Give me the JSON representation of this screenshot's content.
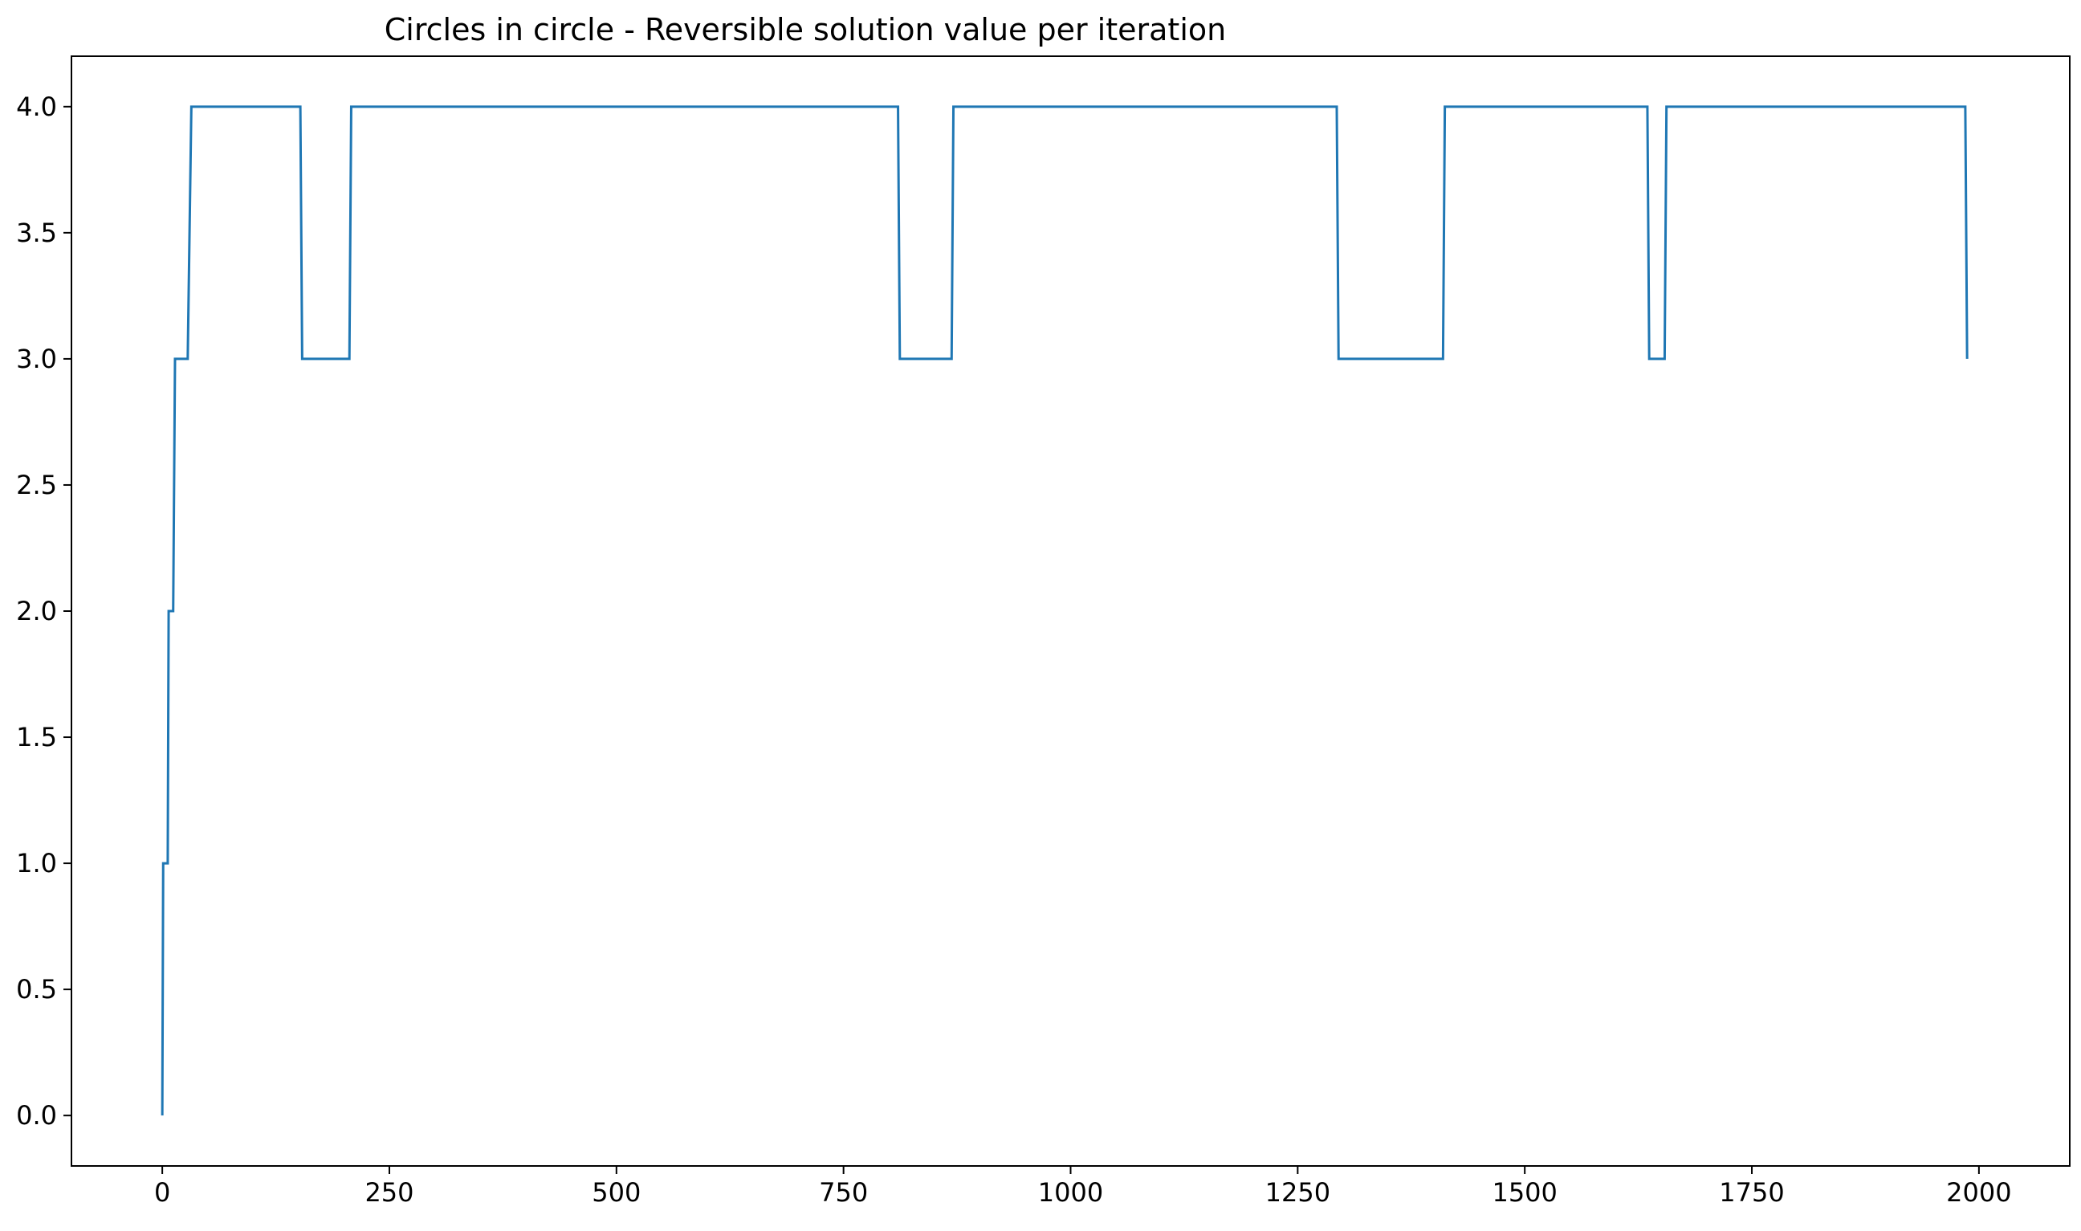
{
  "chart_data": {
    "type": "line",
    "title": "Circles in circle - Reversible solution value per iteration",
    "xlabel": "",
    "ylabel": "",
    "xlim": [
      -100,
      2100
    ],
    "ylim": [
      -0.2,
      4.2
    ],
    "xticks": [
      0,
      250,
      500,
      750,
      1000,
      1250,
      1500,
      1750,
      2000
    ],
    "yticks": [
      0.0,
      0.5,
      1.0,
      1.5,
      2.0,
      2.5,
      3.0,
      3.5,
      4.0
    ],
    "xtick_labels": [
      "0",
      "250",
      "500",
      "750",
      "1000",
      "1250",
      "1500",
      "1750",
      "2000"
    ],
    "ytick_labels": [
      "0.0",
      "0.5",
      "1.0",
      "1.5",
      "2.0",
      "2.5",
      "3.0",
      "3.5",
      "4.0"
    ],
    "grid": false,
    "legend": "none",
    "series": [
      {
        "color": "#1f77b4",
        "step_points": [
          [
            0,
            0
          ],
          [
            1,
            1
          ],
          [
            6,
            1
          ],
          [
            7,
            2
          ],
          [
            12,
            2
          ],
          [
            14,
            3
          ],
          [
            28,
            3
          ],
          [
            32,
            4
          ],
          [
            152,
            4
          ],
          [
            154,
            3
          ],
          [
            206,
            3
          ],
          [
            208,
            4
          ],
          [
            810,
            4
          ],
          [
            812,
            3
          ],
          [
            869,
            3
          ],
          [
            871,
            4
          ],
          [
            1293,
            4
          ],
          [
            1295,
            3
          ],
          [
            1410,
            3
          ],
          [
            1412,
            4
          ],
          [
            1635,
            4
          ],
          [
            1637,
            3
          ],
          [
            1654,
            3
          ],
          [
            1656,
            4
          ],
          [
            1985,
            4
          ],
          [
            1987,
            3
          ]
        ]
      }
    ]
  }
}
